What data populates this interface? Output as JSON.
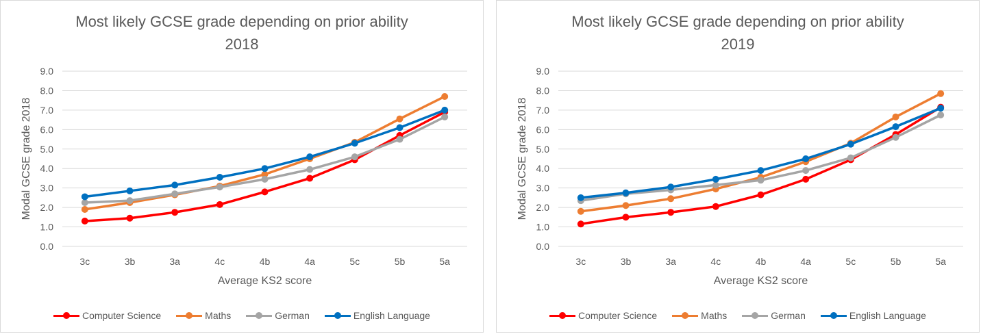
{
  "chart_data": [
    {
      "type": "line",
      "title_lines": [
        "Most likely GCSE grade depending on prior ability",
        "2018"
      ],
      "xlabel": "Average KS2 score",
      "ylabel": "Modal GCSE grade 2018",
      "ylim": [
        0,
        9
      ],
      "yticks": [
        "0.0",
        "1.0",
        "2.0",
        "3.0",
        "4.0",
        "5.0",
        "6.0",
        "7.0",
        "8.0",
        "9.0"
      ],
      "categories": [
        "3c",
        "3b",
        "3a",
        "4c",
        "4b",
        "4a",
        "5c",
        "5b",
        "5a"
      ],
      "grid": true,
      "legend_position": "bottom",
      "series": [
        {
          "name": "Computer Science",
          "color": "#ff0000",
          "values": [
            1.3,
            1.45,
            1.75,
            2.15,
            2.8,
            3.5,
            4.45,
            5.7,
            6.9
          ]
        },
        {
          "name": "Maths",
          "color": "#ed7d31",
          "values": [
            1.9,
            2.25,
            2.65,
            3.1,
            3.7,
            4.5,
            5.35,
            6.55,
            7.7
          ]
        },
        {
          "name": "German",
          "color": "#a5a5a5",
          "values": [
            2.25,
            2.35,
            2.7,
            3.05,
            3.45,
            3.95,
            4.6,
            5.5,
            6.65
          ]
        },
        {
          "name": "English Language",
          "color": "#0070c0",
          "values": [
            2.55,
            2.85,
            3.15,
            3.55,
            4.0,
            4.6,
            5.3,
            6.1,
            7.0
          ]
        }
      ]
    },
    {
      "type": "line",
      "title_lines": [
        "Most likely GCSE grade depending on prior ability",
        "2019"
      ],
      "xlabel": "Average KS2 score",
      "ylabel": "Modal GCSE grade 2018",
      "ylim": [
        0,
        9
      ],
      "yticks": [
        "0.0",
        "1.0",
        "2.0",
        "3.0",
        "4.0",
        "5.0",
        "6.0",
        "7.0",
        "8.0",
        "9.0"
      ],
      "categories": [
        "3c",
        "3b",
        "3a",
        "4c",
        "4b",
        "4a",
        "5c",
        "5b",
        "5a"
      ],
      "grid": true,
      "legend_position": "bottom",
      "series": [
        {
          "name": "Computer Science",
          "color": "#ff0000",
          "values": [
            1.15,
            1.5,
            1.75,
            2.05,
            2.65,
            3.45,
            4.45,
            5.75,
            7.15
          ]
        },
        {
          "name": "Maths",
          "color": "#ed7d31",
          "values": [
            1.8,
            2.1,
            2.45,
            2.95,
            3.55,
            4.35,
            5.3,
            6.65,
            7.85
          ]
        },
        {
          "name": "German",
          "color": "#a5a5a5",
          "values": [
            2.35,
            2.7,
            2.9,
            3.15,
            3.4,
            3.9,
            4.55,
            5.6,
            6.75
          ]
        },
        {
          "name": "English Language",
          "color": "#0070c0",
          "values": [
            2.5,
            2.75,
            3.05,
            3.45,
            3.9,
            4.5,
            5.25,
            6.15,
            7.1
          ]
        }
      ]
    }
  ]
}
